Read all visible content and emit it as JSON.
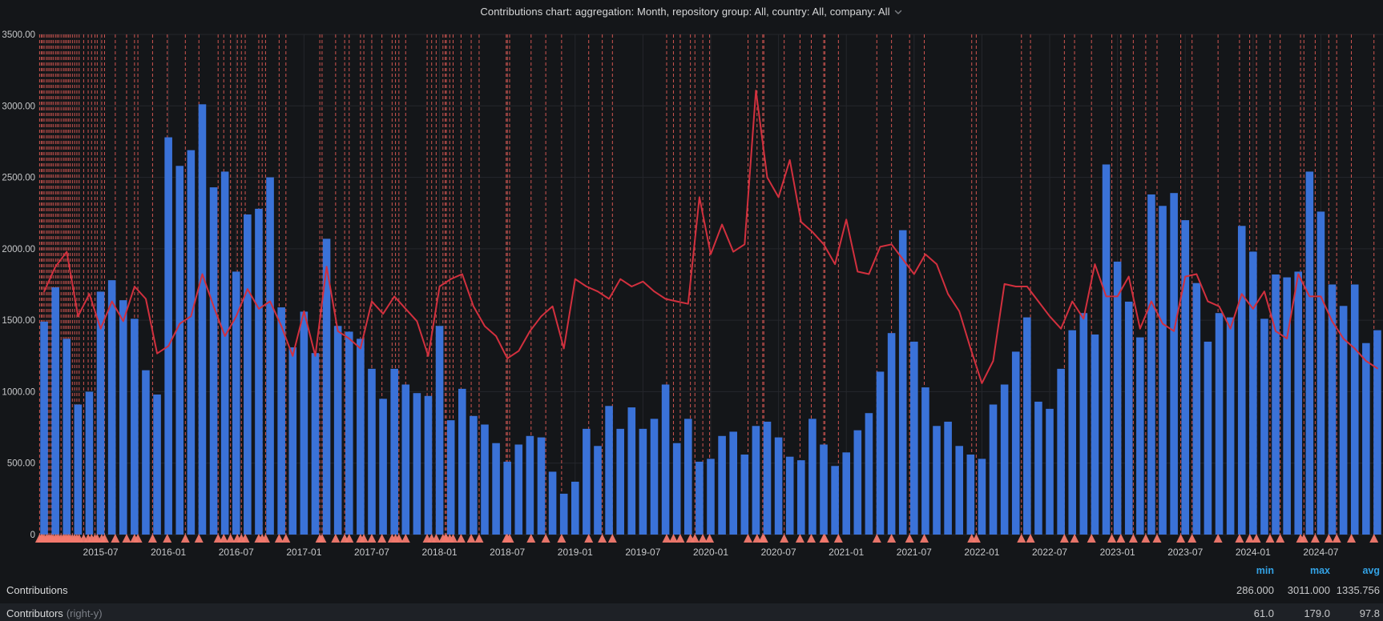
{
  "header": {
    "title": "Contributions chart: aggregation: Month, repository group: All, country: All, company: All"
  },
  "colors": {
    "background": "#141619",
    "bar_blue": "#3a72d8",
    "line_red": "#d2303e",
    "annotation_red": "#f0605a",
    "annotation_marker": "#f2796e",
    "grid": "#25272c",
    "axis_text": "#c7c8ca",
    "stat_header_blue": "#33a2e5",
    "text": "#d8d9da",
    "muted_text": "#7b7f87",
    "legend_row_highlight": "#1e2126"
  },
  "legend": {
    "headers": {
      "min": "min",
      "max": "max",
      "avg": "avg"
    },
    "rows": [
      {
        "name": "Contributions",
        "suffix": "",
        "min": "286.000",
        "max": "3011.000",
        "avg": "1335.756"
      },
      {
        "name": "Contributors",
        "suffix": "(right-y)",
        "min": "61.0",
        "max": "179.0",
        "avg": "97.8"
      }
    ]
  },
  "chart_data": {
    "type": "bar",
    "subtype": "bar+line-overlay",
    "title": "Contributions chart: aggregation: Month, repository group: All, country: All, company: All",
    "xlabel": "",
    "ylabel": "",
    "ylim": [
      0,
      3500
    ],
    "grid": true,
    "legend_position": "bottom",
    "start_month": "2015-02",
    "y_tick_labels": [
      "3500.00",
      "3000.00",
      "2500.00",
      "2000.00",
      "1500.00",
      "1000.00",
      "500.00",
      "0"
    ],
    "y_tick_values": [
      3500,
      3000,
      2500,
      2000,
      1500,
      1000,
      500,
      0
    ],
    "x_tick_labels": [
      "2015-07",
      "2016-01",
      "2016-07",
      "2017-01",
      "2017-07",
      "2018-01",
      "2018-07",
      "2019-01",
      "2019-07",
      "2020-01",
      "2020-07",
      "2021-01",
      "2021-07",
      "2022-01",
      "2022-07",
      "2023-01",
      "2023-07",
      "2024-01",
      "2024-07"
    ],
    "x_tick_month_indices": [
      5,
      11,
      17,
      23,
      29,
      35,
      41,
      47,
      53,
      59,
      65,
      71,
      77,
      83,
      89,
      95,
      101,
      107,
      113
    ],
    "right_axis_scale_to_left": 17.36,
    "series": [
      {
        "name": "Contributions",
        "render": "bars",
        "axis": "left",
        "color": "#3a72d8",
        "stats": {
          "min": 286.0,
          "max": 3011.0,
          "avg": 1335.756
        },
        "values": [
          1490,
          1730,
          1370,
          910,
          1000,
          1700,
          1780,
          1640,
          1510,
          1150,
          980,
          2780,
          2580,
          2690,
          3011,
          2430,
          2540,
          1840,
          2240,
          2280,
          2500,
          1590,
          1310,
          1560,
          1270,
          2070,
          1460,
          1420,
          1370,
          1160,
          950,
          1160,
          1050,
          990,
          970,
          1460,
          800,
          1020,
          830,
          770,
          640,
          510,
          630,
          690,
          680,
          440,
          286,
          370,
          740,
          620,
          900,
          740,
          890,
          740,
          810,
          1050,
          640,
          810,
          510,
          530,
          690,
          720,
          560,
          760,
          790,
          680,
          545,
          520,
          810,
          630,
          480,
          575,
          730,
          850,
          1140,
          1410,
          2130,
          1350,
          1030,
          760,
          790,
          620,
          560,
          530,
          910,
          1050,
          1280,
          1520,
          930,
          880,
          1160,
          1430,
          1550,
          1400,
          2590,
          1910,
          1630,
          1380,
          2380,
          2300,
          2390,
          2200,
          1760,
          1350,
          1550,
          1520,
          2160,
          1980,
          1510,
          1820,
          1800,
          1840,
          2540,
          2260,
          1750,
          1600,
          1750,
          1340,
          1430
        ]
      },
      {
        "name": "Contributors",
        "render": "line",
        "axis": "right-y",
        "color": "#d2303e",
        "stats": {
          "min": 61.0,
          "max": 179.0,
          "avg": 97.8
        },
        "values": [
          98,
          108,
          114,
          88,
          97,
          83,
          94,
          86,
          100,
          95,
          73,
          76,
          85,
          88,
          105,
          92,
          80,
          88,
          99,
          91,
          94,
          84,
          72,
          90,
          72,
          108,
          82,
          79,
          75,
          94,
          89,
          96,
          91,
          86,
          72,
          100,
          103,
          105,
          92,
          84,
          80,
          71,
          74,
          82,
          88,
          92,
          75,
          103,
          100,
          98,
          95,
          103,
          100,
          102,
          98,
          95,
          94,
          93,
          136,
          113,
          125,
          114,
          117,
          179,
          144,
          136,
          151,
          126,
          122,
          117,
          109,
          127,
          106,
          105,
          116,
          117,
          111,
          105,
          113,
          109,
          97,
          90,
          75,
          61,
          70,
          101,
          100,
          100,
          94,
          88,
          83,
          94,
          87,
          109,
          96,
          96,
          104,
          83,
          94,
          85,
          82,
          104,
          105,
          94,
          92,
          83,
          97,
          91,
          98,
          82,
          79,
          105,
          96,
          96,
          86,
          79,
          75,
          70,
          67
        ]
      }
    ],
    "annotations": {
      "style": "vertical-dashed-lines-with-bottom-triangles",
      "color": "#f0605a",
      "positions_months": [
        0.1,
        0.25,
        0.36,
        0.5,
        0.7,
        0.85,
        1.0,
        1.15,
        1.3,
        1.5,
        1.65,
        1.8,
        2.0,
        2.2,
        2.35,
        2.5,
        2.65,
        2.8,
        3.0,
        3.2,
        3.4,
        3.6,
        4.0,
        4.4,
        4.7,
        5.0,
        5.2,
        5.6,
        5.85,
        6.8,
        7.8,
        8.5,
        8.8,
        10.1,
        11.4,
        13.0,
        14.2,
        15.9,
        16.4,
        17.0,
        17.6,
        17.96,
        18.3,
        19.5,
        19.8,
        20.1,
        21.3,
        21.9,
        24.9,
        25.1,
        26.3,
        27.1,
        27.5,
        28.5,
        28.8,
        29.5,
        30.4,
        31.3,
        31.6,
        31.9,
        32.5,
        34.4,
        34.8,
        35.2,
        35.8,
        36.0,
        36.1,
        36.4,
        36.7,
        37.4,
        38.3,
        39.0,
        41.4,
        41.5,
        41.7,
        43.6,
        44.9,
        46.3,
        48.7,
        49.9,
        50.8,
        55.6,
        56.2,
        56.8,
        57.7,
        58.1,
        58.8,
        59.4,
        62.8,
        63.6,
        64.1,
        64.2,
        66.0,
        67.4,
        68.4,
        69.5,
        69.6,
        70.8,
        74.2,
        75.5,
        77.1,
        78.4,
        82.6,
        83.0,
        87.0,
        87.8,
        90.8,
        91.7,
        93.2,
        95.0,
        95.8,
        96.9,
        98.0,
        99.0,
        101.1,
        102.1,
        104.4,
        106.3,
        107.2,
        107.8,
        109.0,
        109.9,
        111.7,
        112.0,
        113.0,
        114.2,
        114.9,
        116.2,
        118.2
      ]
    }
  }
}
